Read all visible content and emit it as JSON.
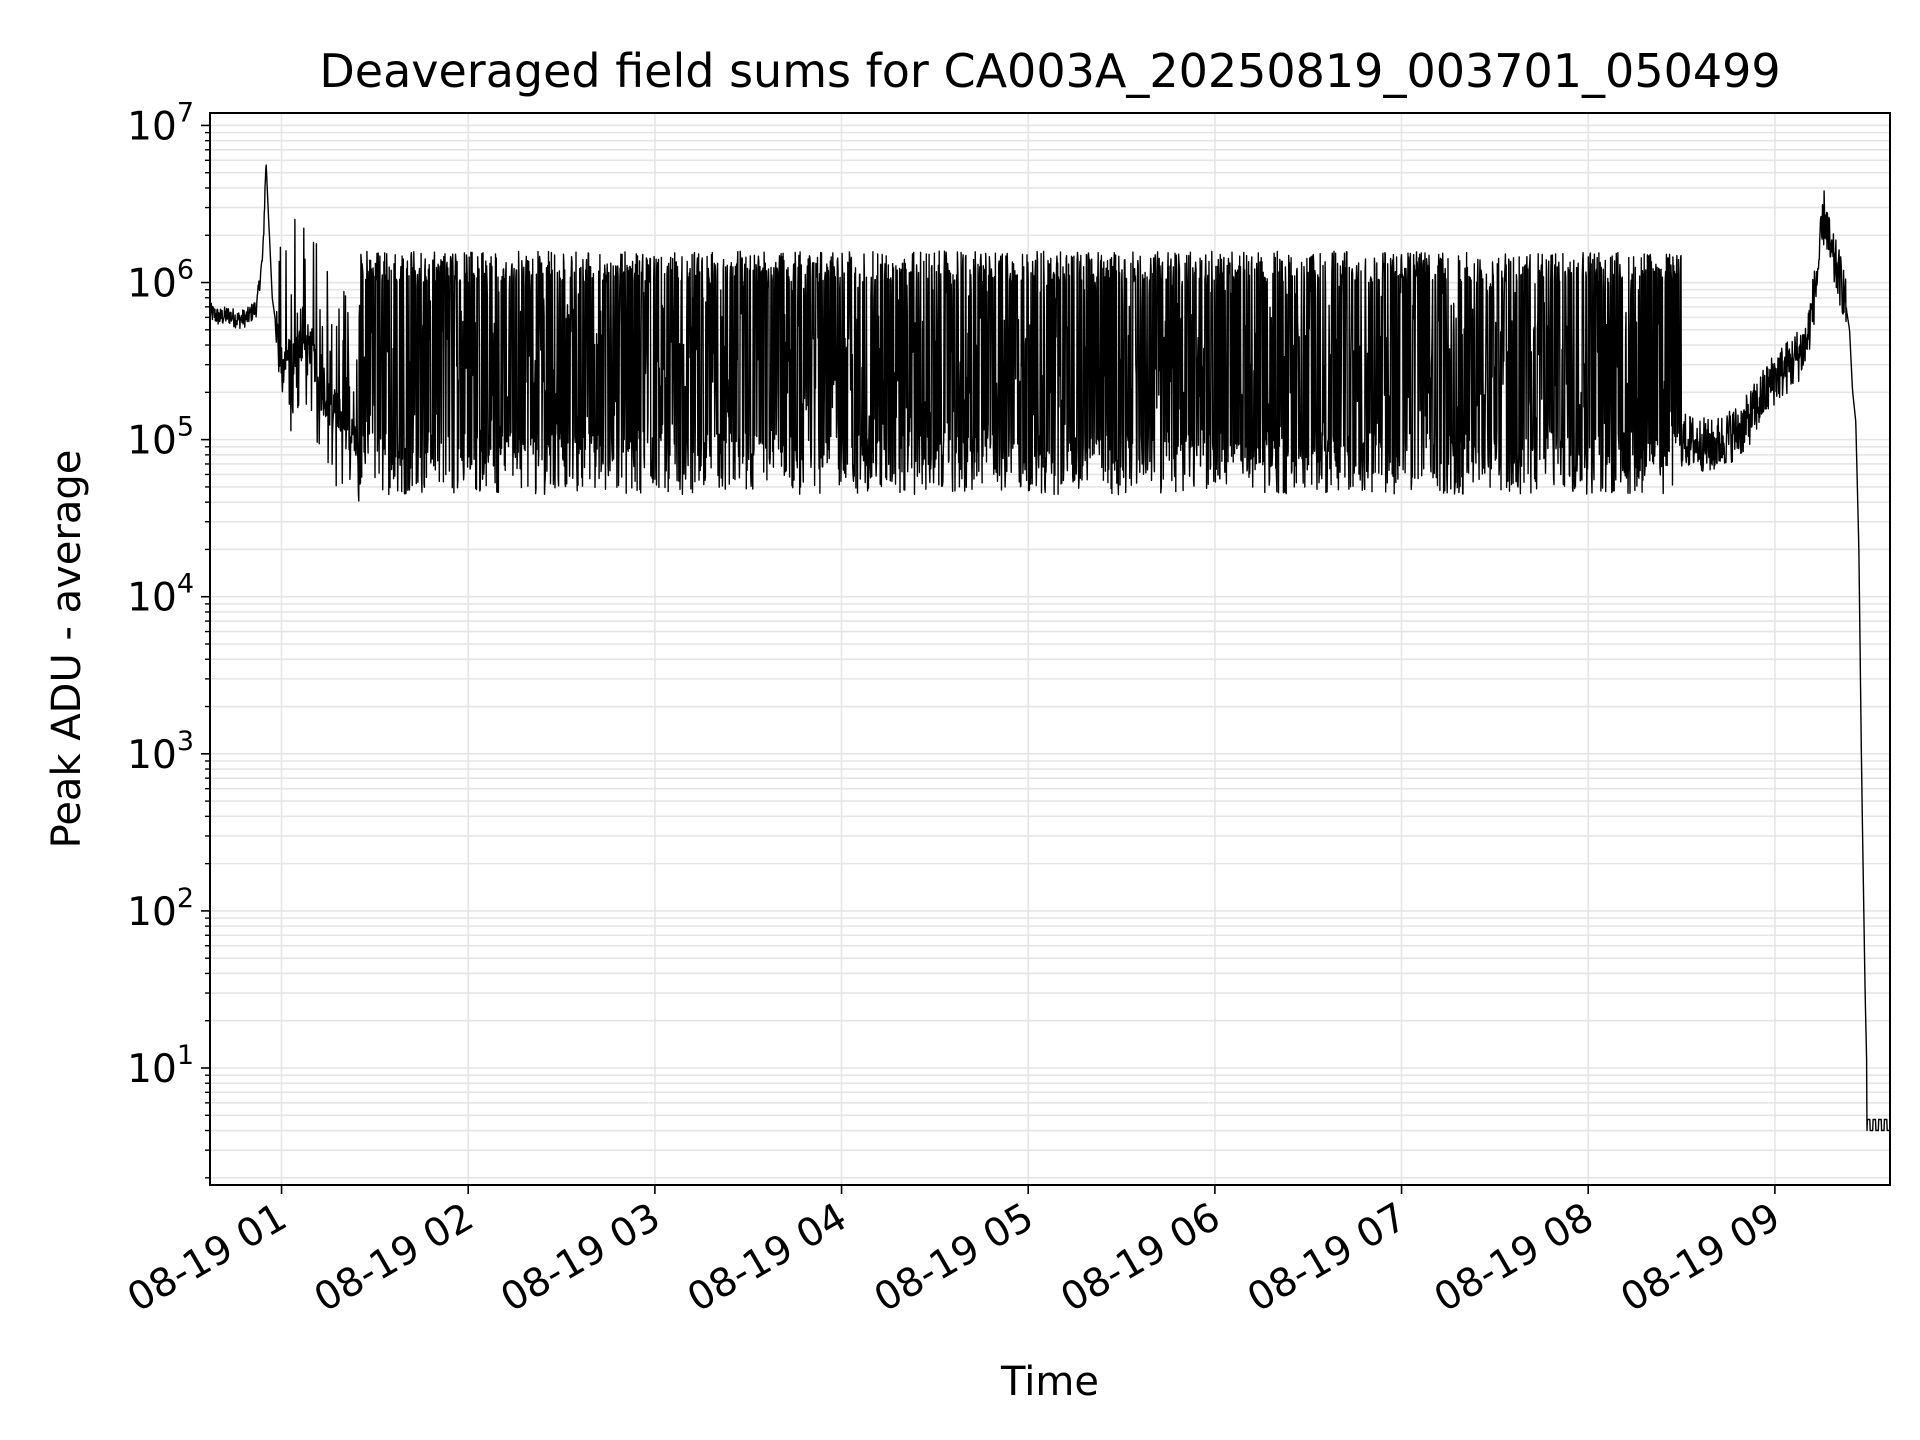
{
  "chart_data": {
    "type": "line",
    "title": "Deaveraged field sums for CA003A_20250819_003701_050499",
    "xlabel": "Time",
    "ylabel": "Peak ADU - average",
    "yscale": "log",
    "grid": true,
    "line_color": "#000000",
    "grid_color": "#e5e5e5",
    "xlim": [
      "2025-08-19 00:37",
      "2025-08-19 09:37"
    ],
    "ylim": [
      1.8,
      12000000
    ],
    "x_ticks": [
      "08-19 01",
      "08-19 02",
      "08-19 03",
      "08-19 04",
      "08-19 05",
      "08-19 06",
      "08-19 07",
      "08-19 08",
      "08-19 09"
    ],
    "y_ticks": [
      {
        "base": "10",
        "exp": "1"
      },
      {
        "base": "10",
        "exp": "2"
      },
      {
        "base": "10",
        "exp": "3"
      },
      {
        "base": "10",
        "exp": "4"
      },
      {
        "base": "10",
        "exp": "5"
      },
      {
        "base": "10",
        "exp": "6"
      },
      {
        "base": "10",
        "exp": "7"
      }
    ],
    "series": [
      {
        "x": [
          "00:37",
          "00:40",
          "00:43",
          "00:46",
          "00:49",
          "00:52",
          "00:54",
          "00:55",
          "00:57",
          "01:00",
          "01:03",
          "01:05",
          "01:08",
          "01:10",
          "01:12",
          "01:15",
          "01:18",
          "01:20",
          "01:25",
          "01:30",
          "01:35",
          "01:40",
          "01:45",
          "01:50",
          "01:55",
          "02:00",
          "02:15",
          "02:30",
          "02:45",
          "03:00",
          "03:15",
          "03:30",
          "03:45",
          "04:00",
          "04:15",
          "04:30",
          "04:45",
          "05:00",
          "05:15",
          "05:30",
          "05:45",
          "06:00",
          "06:15",
          "06:30",
          "06:45",
          "07:00",
          "07:15",
          "07:30",
          "07:45",
          "08:00",
          "08:15",
          "08:30",
          "08:40",
          "08:50",
          "09:00",
          "09:05",
          "09:10",
          "09:13",
          "09:16",
          "09:18",
          "09:20",
          "09:22",
          "09:24",
          "09:25",
          "09:26",
          "09:27",
          "09:28",
          "09:29",
          "09:30",
          "09:33",
          "09:37"
        ],
        "y": [
          650000,
          600000,
          620000,
          580000,
          600000,
          700000,
          1500000,
          6000000,
          800000,
          300000,
          350000,
          400000,
          420000,
          380000,
          200000,
          180000,
          150000,
          120000,
          95000,
          90000,
          300000,
          600000,
          500000,
          600000,
          550000,
          600000,
          500000,
          550000,
          600000,
          500000,
          550000,
          450000,
          500000,
          450000,
          480000,
          500000,
          520000,
          500000,
          550000,
          500000,
          520000,
          480000,
          500000,
          520000,
          500000,
          550000,
          500000,
          520000,
          480000,
          450000,
          300000,
          100000,
          90000,
          120000,
          250000,
          300000,
          400000,
          900000,
          2800000,
          1500000,
          1200000,
          900000,
          500000,
          200000,
          130000,
          20000,
          500,
          30,
          4,
          4,
          4
        ]
      }
    ]
  }
}
